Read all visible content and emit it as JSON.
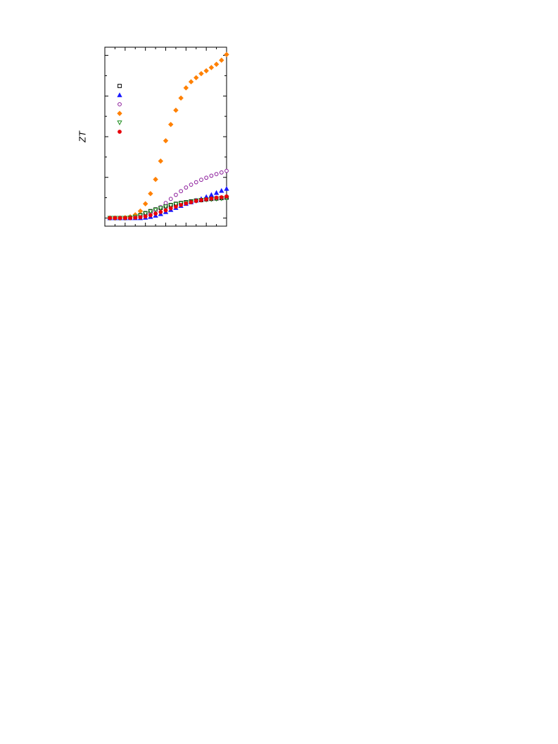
{
  "chart_data": {
    "type": "scatter",
    "ylabel": "ZT",
    "x": [
      0.25,
      0.5,
      0.75,
      1.0,
      1.25,
      1.5,
      1.75,
      2.0,
      2.25,
      2.5,
      2.75,
      3.0,
      3.25,
      3.5,
      3.75,
      4.0,
      4.25,
      4.5,
      4.75,
      5.0,
      5.25,
      5.5,
      5.75,
      6.0
    ],
    "xlim": [
      0,
      6
    ],
    "xticks": [
      0,
      1,
      2,
      3,
      4,
      5,
      6
    ],
    "ylim": [
      -0.2,
      4.2
    ],
    "yticks": [
      0,
      1,
      2,
      3,
      4
    ],
    "legend": "upper left",
    "series": [
      {
        "color": "#000000",
        "marker": "square",
        "filled": false,
        "values": [
          0,
          0,
          0,
          0,
          0.01,
          0.03,
          0.07,
          0.12,
          0.17,
          0.21,
          0.25,
          0.29,
          0.32,
          0.35,
          0.37,
          0.39,
          0.41,
          0.43,
          0.44,
          0.46,
          0.47,
          0.48,
          0.49,
          0.5
        ]
      },
      {
        "color": "#1a1aff",
        "marker": "triangle-up",
        "filled": true,
        "values": [
          0,
          0,
          0,
          0,
          0,
          0,
          0,
          0.01,
          0.03,
          0.06,
          0.1,
          0.15,
          0.2,
          0.25,
          0.3,
          0.35,
          0.39,
          0.43,
          0.47,
          0.52,
          0.57,
          0.62,
          0.67,
          0.72
        ]
      },
      {
        "color": "#8b1a9b",
        "marker": "circle",
        "filled": false,
        "values": [
          0,
          0,
          0,
          0,
          0,
          0.01,
          0.02,
          0.05,
          0.1,
          0.18,
          0.27,
          0.37,
          0.47,
          0.57,
          0.66,
          0.75,
          0.82,
          0.88,
          0.94,
          0.99,
          1.04,
          1.08,
          1.12,
          1.16
        ]
      },
      {
        "color": "#ff8000",
        "marker": "diamond",
        "filled": true,
        "values": [
          0,
          0,
          0,
          0.01,
          0.03,
          0.08,
          0.17,
          0.35,
          0.6,
          0.95,
          1.4,
          1.9,
          2.3,
          2.65,
          2.95,
          3.2,
          3.35,
          3.45,
          3.55,
          3.62,
          3.7,
          3.78,
          3.88,
          4.02
        ]
      },
      {
        "color": "#1a8c1a",
        "marker": "triangle-down",
        "filled": false,
        "values": [
          0,
          0,
          0,
          0,
          0.01,
          0.03,
          0.06,
          0.11,
          0.16,
          0.2,
          0.24,
          0.28,
          0.31,
          0.34,
          0.36,
          0.38,
          0.4,
          0.42,
          0.44,
          0.45,
          0.46,
          0.47,
          0.48,
          0.49
        ]
      },
      {
        "color": "#e8000b",
        "marker": "circle",
        "filled": true,
        "values": [
          0,
          0,
          0,
          0,
          0,
          0.01,
          0.02,
          0.04,
          0.07,
          0.11,
          0.15,
          0.19,
          0.24,
          0.28,
          0.32,
          0.36,
          0.39,
          0.42,
          0.44,
          0.46,
          0.48,
          0.5,
          0.51,
          0.53
        ]
      }
    ]
  }
}
